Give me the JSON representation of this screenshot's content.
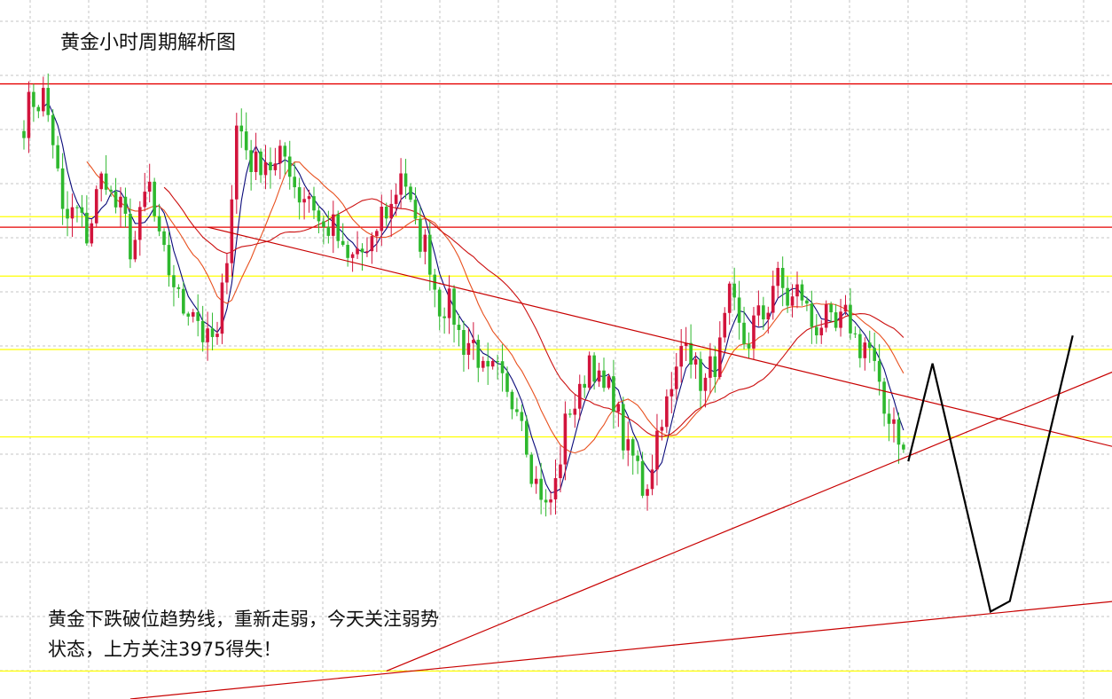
{
  "chart": {
    "title": "黄金小时周期解析图",
    "analysis_lines": [
      "黄金下跌破位趋势线，重新走弱，今天关注弱势",
      "状态，上方关注3975得失！"
    ]
  },
  "chart_data": {
    "type": "candlestick",
    "title": "黄金小时周期解析图",
    "xlabel": "",
    "ylabel": "",
    "grid": true,
    "legend": "none",
    "colors": {
      "up": "#d2143c",
      "down": "#2eb82e",
      "ma_fast": "#0a0a7a",
      "ma_mid": "#e8501e",
      "ma_slow": "#cc1010",
      "resistance": "#e60000",
      "support": "#ffff00",
      "trendline": "#c80000",
      "forecast": "#000000"
    },
    "ylim": [
      3860,
      4060
    ],
    "key_level": 3975,
    "horizontal_levels": [
      {
        "kind": "resistance",
        "y": 4036
      },
      {
        "kind": "resistance",
        "y": 3995
      },
      {
        "kind": "support",
        "y": 3998
      },
      {
        "kind": "support",
        "y": 3981
      },
      {
        "kind": "support",
        "y": 3960
      },
      {
        "kind": "support",
        "y": 3935
      },
      {
        "kind": "support",
        "y": 3868
      }
    ],
    "price_path_x": [
      0,
      4,
      8,
      13,
      17,
      22,
      26,
      30,
      40,
      44,
      49,
      53,
      60,
      68,
      72,
      78,
      82,
      86,
      95,
      102,
      108,
      113,
      117,
      121,
      128,
      137,
      141,
      146,
      150,
      155,
      160,
      165,
      169,
      174,
      178,
      182
    ],
    "price_path_y": [
      4025,
      4035,
      4000,
      3995,
      4010,
      3990,
      4005,
      3980,
      3960,
      4022,
      4012,
      4015,
      4000,
      3985,
      3990,
      4010,
      3992,
      3975,
      3955,
      3945,
      3912,
      3942,
      3956,
      3948,
      3920,
      3964,
      3948,
      3972,
      3962,
      3978,
      3975,
      3966,
      3968,
      3962,
      3944,
      3932
    ],
    "candle_count": 183,
    "forecast_path_x": [
      183,
      188,
      200,
      204,
      217
    ],
    "forecast_path_y": [
      3928,
      3956,
      3885,
      3888,
      3964
    ]
  }
}
